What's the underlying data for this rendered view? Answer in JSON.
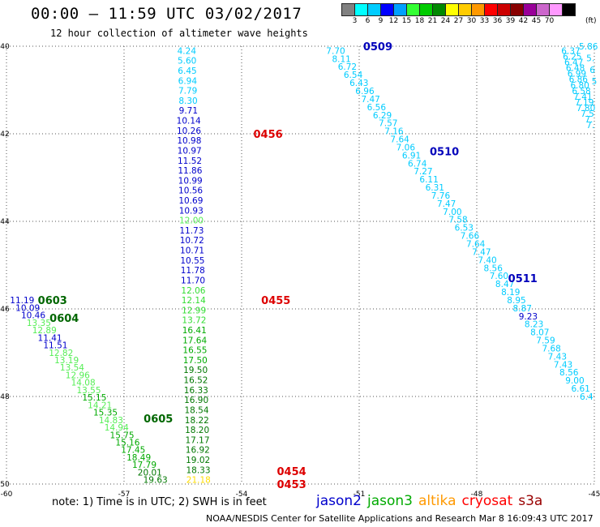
{
  "title": "00:00 – 11:59 UTC 03/02/2017",
  "subtitle": "12 hour collection of altimeter wave heights",
  "colorbar": {
    "colors": [
      "#808080",
      "#00ffff",
      "#00ccff",
      "#0000ff",
      "#00a0ff",
      "#33ff33",
      "#00cc00",
      "#008800",
      "#ffff00",
      "#ffcc00",
      "#ff9900",
      "#ff0000",
      "#cc0000",
      "#880000",
      "#990099",
      "#cc66cc",
      "#ff99ff",
      "#000000"
    ],
    "labels": [
      "3",
      "6",
      "9",
      "12",
      "15",
      "18",
      "21",
      "24",
      "27",
      "30",
      "33",
      "36",
      "39",
      "42",
      "45",
      "70"
    ],
    "unit": "(ft)"
  },
  "lat_labels": [
    {
      "label": "-40",
      "lat": -40
    },
    {
      "label": "-42",
      "lat": -42
    },
    {
      "label": "-44",
      "lat": -44
    },
    {
      "label": "-46",
      "lat": -46
    },
    {
      "label": "-48",
      "lat": -48
    },
    {
      "label": "-50",
      "lat": -50
    }
  ],
  "lon_labels": [
    {
      "label": "-60",
      "lon": -60
    },
    {
      "label": "-57",
      "lon": -57
    },
    {
      "label": "-54",
      "lon": -54
    },
    {
      "label": "-51",
      "lon": -51
    },
    {
      "label": "-48",
      "lon": -48
    },
    {
      "label": "-45",
      "lon": -45
    }
  ],
  "passes": [
    {
      "label": "0456",
      "lon": -53.7,
      "lat": -42.0,
      "color": "#dd0000"
    },
    {
      "label": "0455",
      "lon": -53.5,
      "lat": -45.8,
      "color": "#dd0000"
    },
    {
      "label": "0454",
      "lon": -53.1,
      "lat": -49.7,
      "color": "#dd0000"
    },
    {
      "label": "0453",
      "lon": -53.1,
      "lat": -50.0,
      "color": "#dd0000"
    },
    {
      "label": "0509",
      "lon": -50.9,
      "lat": -40.0,
      "color": "#0000bb"
    },
    {
      "label": "0510",
      "lon": -49.2,
      "lat": -42.4,
      "color": "#0000bb"
    },
    {
      "label": "0511",
      "lon": -47.2,
      "lat": -45.3,
      "color": "#0000bb"
    },
    {
      "label": "0603",
      "lon": -59.2,
      "lat": -45.8,
      "color": "#006600"
    },
    {
      "label": "0604",
      "lon": -58.9,
      "lat": -46.2,
      "color": "#006600"
    },
    {
      "label": "0605",
      "lon": -56.5,
      "lat": -48.5,
      "color": "#006600"
    }
  ],
  "tracks": [
    {
      "name": "track-0456",
      "lon_start": -55.4,
      "lat_start": -40.1,
      "lon_end": -55.1,
      "lat_end": -49.9,
      "anchor": "middle",
      "values": [
        "4.24",
        "5.60",
        "6.45",
        "6.94",
        "7.79",
        "8.30",
        "9.71",
        "10.14",
        "10.26",
        "10.98",
        "10.97",
        "11.52",
        "11.86",
        "10.99",
        "10.56",
        "10.69",
        "10.93",
        "12.00",
        "11.73",
        "10.72",
        "10.71",
        "10.55",
        "11.78",
        "11.70",
        "12.06",
        "12.14",
        "12.99",
        "13.72",
        "16.41",
        "17.64",
        "16.55",
        "17.50",
        "19.50",
        "16.52",
        "16.33",
        "16.90",
        "18.54",
        "18.22",
        "18.20",
        "17.17",
        "16.92",
        "19.02",
        "18.33",
        "21.18"
      ],
      "colors": [
        "#00ccff",
        "#00ccff",
        "#00ccff",
        "#00ccff",
        "#00ccff",
        "#00ccff",
        "#0000cc",
        "#0000cc",
        "#0000cc",
        "#0000cc",
        "#0000cc",
        "#0000cc",
        "#0000cc",
        "#0000cc",
        "#0000cc",
        "#0000cc",
        "#0000cc",
        "#55ee55",
        "#0000cc",
        "#0000cc",
        "#0000cc",
        "#0000cc",
        "#0000cc",
        "#0000cc",
        "#33dd33",
        "#33dd33",
        "#33dd33",
        "#33dd33",
        "#00aa00",
        "#00aa00",
        "#00aa00",
        "#00aa00",
        "#007700",
        "#007700",
        "#007700",
        "#007700",
        "#007700",
        "#007700",
        "#007700",
        "#007700",
        "#007700",
        "#007700",
        "#007700",
        "#ffdd00"
      ]
    },
    {
      "name": "track-0509",
      "lon_start": -51.6,
      "lat_start": -40.1,
      "lon_end": -45.2,
      "lat_end": -48.0,
      "anchor": "middle",
      "values": [
        "7.70",
        "8.11",
        "6.72",
        "6.54",
        "6.43",
        "6.96",
        "7.47",
        "6.56",
        "6.29",
        "7.57",
        "7.16",
        "7.64",
        "7.06",
        "6.91",
        "6.74",
        "7.27",
        "6.11",
        "6.31",
        "7.76",
        "7.47",
        "7.00",
        "7.58",
        "6.53",
        "7.66",
        "7.64",
        "7.47",
        "7.40",
        "8.56",
        "7.60",
        "8.47",
        "8.19",
        "8.95",
        "8.87",
        "9.23",
        "8.23",
        "8.07",
        "7.59",
        "7.68",
        "7.43",
        "7.43",
        "8.56",
        "9.00",
        "6.61",
        "6.4"
      ],
      "colors": [
        "#00ccff",
        "#00ccff",
        "#00ccff",
        "#00ccff",
        "#00ccff",
        "#00ccff",
        "#00ccff",
        "#00ccff",
        "#00ccff",
        "#00ccff",
        "#00ccff",
        "#00ccff",
        "#00ccff",
        "#00ccff",
        "#00ccff",
        "#00ccff",
        "#00ccff",
        "#00ccff",
        "#00ccff",
        "#00ccff",
        "#00ccff",
        "#00ccff",
        "#00ccff",
        "#00ccff",
        "#00ccff",
        "#00ccff",
        "#00ccff",
        "#00ccff",
        "#00ccff",
        "#00ccff",
        "#00ccff",
        "#00ccff",
        "#00ccff",
        "#0000cc",
        "#00ccff",
        "#00ccff",
        "#00ccff",
        "#00ccff",
        "#00ccff",
        "#00ccff",
        "#00ccff",
        "#00ccff",
        "#00ccff",
        "#00ccff"
      ]
    },
    {
      "name": "track-east",
      "lon_start": -45.6,
      "lat_start": -40.1,
      "lon_end": -45.1,
      "lat_end": -41.8,
      "anchor": "middle",
      "values": [
        "6.37",
        "6.25",
        "6.47",
        "6.48",
        "6.99",
        "6.86",
        "6.80",
        "6.58",
        "7.41",
        "7.19",
        "7.80",
        "7.5",
        "7.",
        "7."
      ],
      "colors": [
        "#00ccff",
        "#00ccff",
        "#00ccff",
        "#00ccff",
        "#00ccff",
        "#00ccff",
        "#00ccff",
        "#00ccff",
        "#00ccff",
        "#00ccff",
        "#00ccff",
        "#00ccff",
        "#00ccff",
        "#00ccff"
      ]
    },
    {
      "name": "track-east-2",
      "lon_start": -45.15,
      "lat_start": -40.0,
      "lon_end": -45.0,
      "lat_end": -40.8,
      "anchor": "middle",
      "values": [
        "5.86",
        "5.",
        "6",
        "5"
      ],
      "colors": [
        "#00ccff",
        "#00ccff",
        "#00ccff",
        "#00ccff"
      ]
    },
    {
      "name": "track-0603",
      "lon_start": -59.6,
      "lat_start": -45.8,
      "lon_end": -56.2,
      "lat_end": -49.9,
      "anchor": "middle",
      "values": [
        "11.19",
        "10.09",
        "10.46",
        "13.35",
        "12.89",
        "11.41",
        "11.51",
        "12.82",
        "13.19",
        "13.54",
        "12.96",
        "14.08",
        "13.55",
        "15.15",
        "14.21",
        "15.35",
        "14.83",
        "14.94",
        "15.75",
        "15.16",
        "17.45",
        "18.49",
        "17.79",
        "20.01",
        "19.63"
      ],
      "colors": [
        "#0000cc",
        "#0000cc",
        "#0000cc",
        "#55ee55",
        "#55ee55",
        "#0000cc",
        "#0000cc",
        "#55ee55",
        "#55ee55",
        "#55ee55",
        "#55ee55",
        "#55ee55",
        "#55ee55",
        "#00aa00",
        "#55ee55",
        "#00aa00",
        "#55ee55",
        "#55ee55",
        "#00aa00",
        "#00aa00",
        "#00aa00",
        "#00aa00",
        "#00aa00",
        "#007700",
        "#007700"
      ]
    }
  ],
  "note": "note:  1) Time is in UTC;  2) SWH is in feet",
  "credit": "NOAA/NESDIS Center for Satellite Applications and Research    Mar  8 16:09:43 UTC 2017",
  "satellites": [
    {
      "name": "jason2",
      "color": "#0000cc"
    },
    {
      "name": "jason3",
      "color": "#00aa00"
    },
    {
      "name": "altika",
      "color": "#ff9900"
    },
    {
      "name": "cryosat",
      "color": "#ff0000"
    },
    {
      "name": "s3a",
      "color": "#990000"
    }
  ]
}
